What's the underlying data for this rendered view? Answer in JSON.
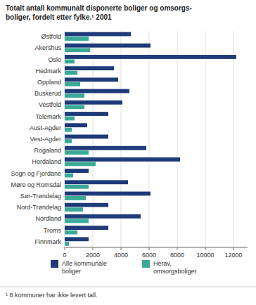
{
  "chart_data": {
    "type": "bar",
    "orientation": "horizontal",
    "title": "Totalt antall kommunalt disponerte boliger og omsorgs-\nboliger, fordelt etter fylke.¹ 2001",
    "categories": [
      "Østfold",
      "Akershus",
      "Oslo",
      "Hedmark",
      "Oppland",
      "Buskerud",
      "Vestfold",
      "Telemark",
      "Aust-Agder",
      "Vest-Agder",
      "Rogaland",
      "Hordaland",
      "Sogn og Fjordane",
      "Møre og Romsdal",
      "Sør-Trøndelag",
      "Nord-Trøndelag",
      "Nordland",
      "Troms",
      "Finnmark"
    ],
    "series": [
      {
        "name": "Alle kommunale\nboliger",
        "color": "#1e3a78",
        "values": [
          4700,
          6100,
          12200,
          3500,
          3800,
          4600,
          4100,
          3100,
          1600,
          3100,
          5800,
          8200,
          1700,
          4500,
          6100,
          3100,
          5400,
          3100,
          1700
        ]
      },
      {
        "name": "Herav,\nomsorgsboliger",
        "color": "#3aaa96",
        "values": [
          1700,
          1800,
          700,
          900,
          1100,
          1400,
          1400,
          700,
          500,
          500,
          1700,
          2200,
          600,
          1700,
          1500,
          1300,
          1700,
          900,
          300
        ]
      }
    ],
    "xlim": [
      0,
      13000
    ],
    "xticks": [
      0,
      2000,
      4000,
      6000,
      8000,
      10000,
      12000
    ],
    "grid": true,
    "legend": "bottom",
    "footnote": "¹ 8 kommuner har ikke levert tall."
  }
}
